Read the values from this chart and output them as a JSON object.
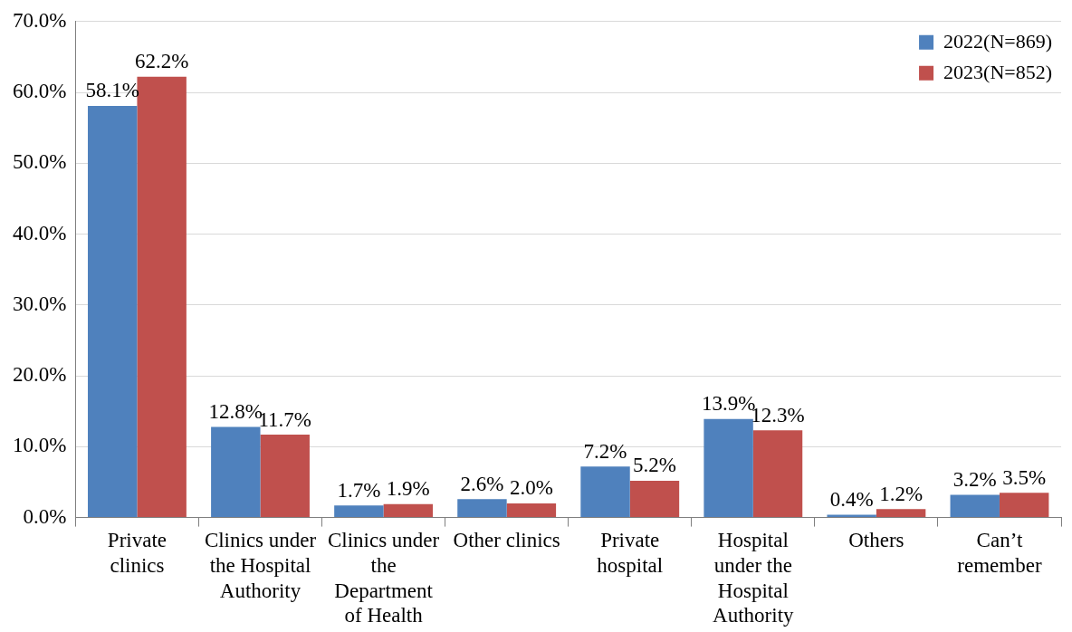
{
  "chart_data": {
    "type": "bar",
    "categories": [
      "Private clinics",
      "Clinics under the Hospital Authority",
      "Clinics under the Department of Health",
      "Other clinics",
      "Private hospital",
      "Hospital under the Hospital Authority",
      "Others",
      "Can’t remember"
    ],
    "series": [
      {
        "name": "2022(N=869)",
        "color": "#4f81bd",
        "values": [
          58.1,
          12.8,
          1.7,
          2.6,
          7.2,
          13.9,
          0.4,
          3.2
        ],
        "value_labels": [
          "58.1%",
          "12.8%",
          "1.7%",
          "2.6%",
          "7.2%",
          "13.9%",
          "0.4%",
          "3.2%"
        ]
      },
      {
        "name": "2023(N=852)",
        "color": "#c0504d",
        "values": [
          62.2,
          11.7,
          1.9,
          2.0,
          5.2,
          12.3,
          1.2,
          3.5
        ],
        "value_labels": [
          "62.2%",
          "11.7%",
          "1.9%",
          "2.0%",
          "5.2%",
          "12.3%",
          "1.2%",
          "3.5%"
        ]
      }
    ],
    "ylim": [
      0,
      70
    ],
    "yticks": [
      {
        "value": 0,
        "label": "0.0%"
      },
      {
        "value": 10,
        "label": "10.0%"
      },
      {
        "value": 20,
        "label": "20.0%"
      },
      {
        "value": 30,
        "label": "30.0%"
      },
      {
        "value": 40,
        "label": "40.0%"
      },
      {
        "value": 50,
        "label": "50.0%"
      },
      {
        "value": 60,
        "label": "60.0%"
      },
      {
        "value": 70,
        "label": "70.0%"
      }
    ],
    "grid": "y",
    "legend": "top right"
  }
}
